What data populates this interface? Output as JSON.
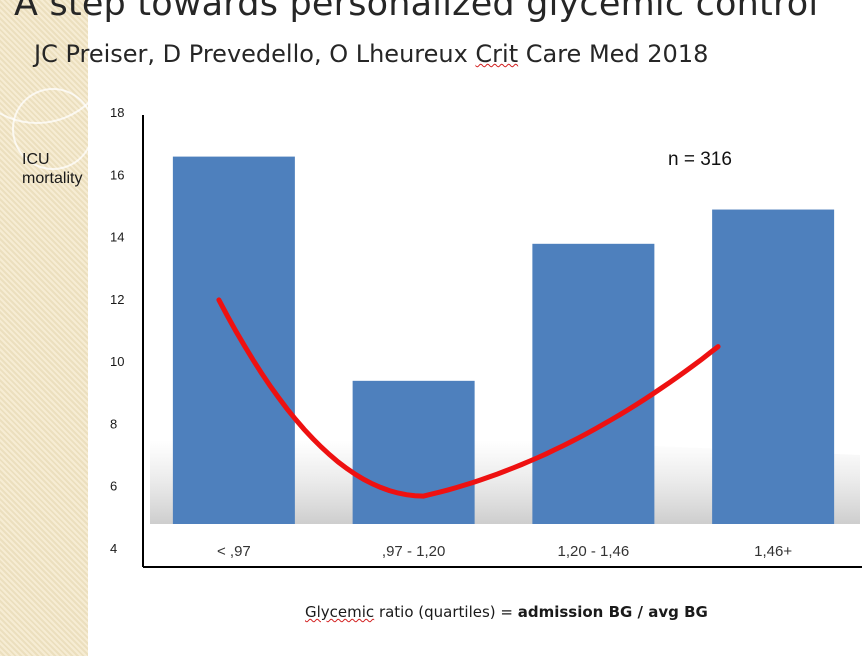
{
  "slide": {
    "title": "A step towards personalized glycemic control",
    "subtitle_prefix": "JC Preiser, D Prevedello, O Lheureux ",
    "subtitle_journal_a": "Crit",
    "subtitle_journal_b": " Care Med 2018"
  },
  "chart_data": {
    "type": "bar",
    "ylabel": "ICU mortality",
    "xlabel_plain": "Glycemic ratio (quartiles) = ",
    "xlabel_bold": "admission BG / avg BG",
    "annotation": "n = 316",
    "categories": [
      "< ,97",
      ",97 - 1,20",
      "1,20 - 1,46",
      "1,46+"
    ],
    "values": [
      16.6,
      9.4,
      13.8,
      14.9
    ],
    "ylim": [
      4,
      18
    ],
    "yticks": [
      "4",
      "6",
      "8",
      "10",
      "12",
      "14",
      "16",
      "18"
    ],
    "grid": false,
    "trend_line": [
      12.0,
      5.7,
      10.5
    ],
    "colors": {
      "bar": "#4e80bd",
      "trend": "#ee1111",
      "axis": "#000000"
    }
  }
}
